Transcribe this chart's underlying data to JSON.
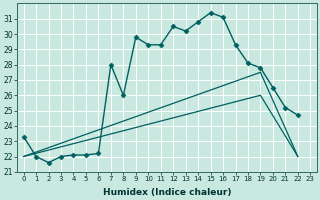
{
  "xlabel": "Humidex (Indice chaleur)",
  "ylabel": "",
  "background_color": "#c8e8e0",
  "grid_color": "#ffffff",
  "line_color": "#006060",
  "xlim": [
    -0.5,
    23.5
  ],
  "ylim": [
    21.0,
    32.0
  ],
  "yticks": [
    21,
    22,
    23,
    24,
    25,
    26,
    27,
    28,
    29,
    30,
    31
  ],
  "xticks": [
    0,
    1,
    2,
    3,
    4,
    5,
    6,
    7,
    8,
    9,
    10,
    11,
    12,
    13,
    14,
    15,
    16,
    17,
    18,
    19,
    20,
    21,
    22,
    23
  ],
  "lines": [
    {
      "x": [
        0,
        1,
        2,
        3,
        4,
        5,
        6,
        7,
        8,
        9,
        10,
        11,
        12,
        13,
        14,
        15,
        16,
        17,
        18,
        19,
        20,
        21,
        22
      ],
      "y": [
        23.3,
        22.0,
        21.6,
        22.0,
        22.1,
        22.1,
        22.2,
        28.0,
        26.0,
        29.8,
        29.3,
        29.3,
        30.5,
        30.2,
        30.8,
        31.4,
        31.1,
        29.3,
        28.1,
        27.8,
        26.5,
        25.2,
        24.7
      ],
      "marker": "D",
      "markersize": 2.5,
      "linewidth": 1.0
    },
    {
      "x": [
        0,
        19,
        22
      ],
      "y": [
        22.0,
        27.5,
        22.0
      ],
      "marker": null,
      "markersize": 0,
      "linewidth": 0.9
    },
    {
      "x": [
        0,
        19,
        22
      ],
      "y": [
        22.0,
        26.0,
        22.0
      ],
      "marker": null,
      "markersize": 0,
      "linewidth": 0.9
    }
  ]
}
